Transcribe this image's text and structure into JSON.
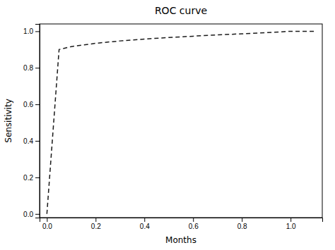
{
  "chart_data": {
    "type": "line",
    "title": "ROC curve",
    "x_label": "Months",
    "y_label": "Sensitivity",
    "x": [
      0.0,
      0.0,
      0.05,
      0.1,
      0.2,
      0.3,
      0.4,
      0.5,
      0.6,
      0.7,
      0.8,
      0.9,
      1.0,
      1.1
    ],
    "values": [
      0.0,
      0.0,
      0.9,
      0.916,
      0.934,
      0.947,
      0.957,
      0.966,
      0.973,
      0.98,
      0.986,
      0.992,
      1.0,
      1.0
    ],
    "color": "#1a1a1a",
    "line_style": "dashed",
    "grid": false,
    "xlim": [
      -0.03,
      1.13
    ],
    "ylim": [
      -0.02,
      1.04
    ],
    "xticks": [
      {
        "value": 0.0,
        "label": "0.0"
      },
      0.2,
      0.4,
      0.6,
      0.8,
      {
        "value": 1.0,
        "label": "1.0"
      }
    ],
    "yticks": [
      {
        "value": 0.0,
        "label": "0.0"
      },
      0.2,
      0.4,
      0.6,
      0.8,
      {
        "value": 1.0,
        "label": "1.0"
      }
    ]
  }
}
